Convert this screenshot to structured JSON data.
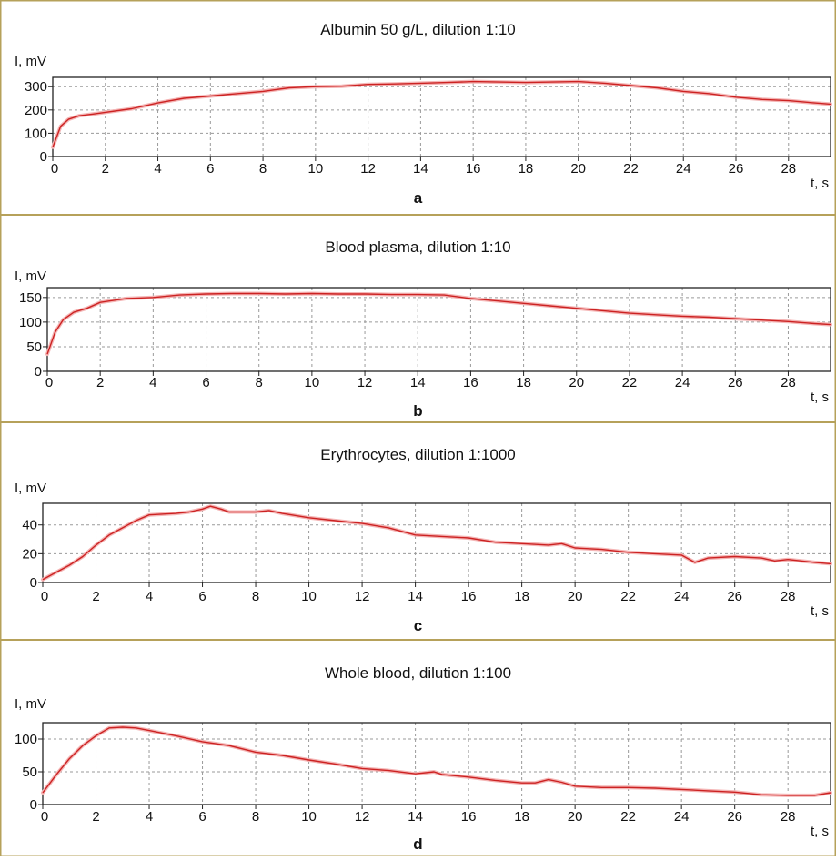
{
  "chart_data": [
    {
      "type": "line",
      "title": "Albumin 50 g/L, dilution 1:10",
      "ylabel": "I, mV",
      "xlabel": "t, s",
      "panel_label": "a",
      "xlim": [
        0,
        29.6
      ],
      "ylim": [
        0,
        340
      ],
      "xticks": [
        0,
        2,
        4,
        6,
        8,
        10,
        12,
        14,
        16,
        18,
        20,
        22,
        24,
        26,
        28
      ],
      "yticks": [
        0,
        100,
        200,
        300
      ],
      "grid": true,
      "series": [
        {
          "color": "#cc2222",
          "x": [
            0,
            0.3,
            0.6,
            1,
            1.5,
            2,
            3,
            4,
            5,
            6,
            7,
            8,
            9,
            10,
            11,
            12,
            13,
            14,
            15,
            16,
            17,
            18,
            19,
            20,
            21,
            22,
            23,
            24,
            25,
            26,
            27,
            28,
            29,
            29.6
          ],
          "y": [
            40,
            130,
            160,
            175,
            182,
            190,
            205,
            230,
            250,
            260,
            270,
            280,
            295,
            300,
            302,
            310,
            312,
            315,
            318,
            322,
            320,
            318,
            320,
            322,
            315,
            305,
            295,
            280,
            270,
            255,
            245,
            240,
            230,
            225
          ]
        }
      ]
    },
    {
      "type": "line",
      "title": "Blood plasma, dilution 1:10",
      "ylabel": "I, mV",
      "xlabel": "t, s",
      "panel_label": "b",
      "xlim": [
        0,
        29.6
      ],
      "ylim": [
        0,
        170
      ],
      "xticks": [
        0,
        2,
        4,
        6,
        8,
        10,
        12,
        14,
        16,
        18,
        20,
        22,
        24,
        26,
        28
      ],
      "yticks": [
        0,
        50,
        100,
        150
      ],
      "grid": true,
      "series": [
        {
          "color": "#cc2222",
          "x": [
            0,
            0.3,
            0.6,
            1,
            1.5,
            2,
            3,
            4,
            5,
            6,
            7,
            8,
            9,
            10,
            11,
            12,
            13,
            14,
            15,
            16,
            17,
            18,
            19,
            20,
            21,
            22,
            23,
            24,
            25,
            26,
            27,
            28,
            29,
            29.6
          ],
          "y": [
            35,
            80,
            105,
            120,
            128,
            140,
            148,
            150,
            155,
            157,
            158,
            158,
            157,
            158,
            157,
            157,
            156,
            156,
            155,
            148,
            143,
            138,
            133,
            128,
            123,
            118,
            115,
            112,
            110,
            107,
            104,
            101,
            97,
            95
          ]
        }
      ]
    },
    {
      "type": "line",
      "title": "Erythrocytes, dilution 1:1000",
      "ylabel": "I, mV",
      "xlabel": "t, s",
      "panel_label": "c",
      "xlim": [
        0,
        29.6
      ],
      "ylim": [
        0,
        55
      ],
      "xticks": [
        0,
        2,
        4,
        6,
        8,
        10,
        12,
        14,
        16,
        18,
        20,
        22,
        24,
        26,
        28
      ],
      "yticks": [
        0,
        20,
        40
      ],
      "grid": true,
      "series": [
        {
          "color": "#cc2222",
          "x": [
            0,
            0.5,
            1,
            1.5,
            2,
            2.5,
            3,
            3.5,
            4,
            5,
            5.5,
            6,
            6.3,
            6.7,
            7,
            8,
            8.5,
            9,
            10,
            11,
            12,
            13,
            14,
            15,
            16,
            17,
            18,
            19,
            19.5,
            20,
            21,
            22,
            23,
            24,
            24.5,
            25,
            26,
            27,
            27.5,
            28,
            29,
            29.6
          ],
          "y": [
            2,
            7,
            12,
            18,
            26,
            33,
            38,
            43,
            47,
            48,
            49,
            51,
            53,
            51,
            49,
            49,
            50,
            48,
            45,
            43,
            41,
            38,
            33,
            32,
            31,
            28,
            27,
            26,
            27,
            24,
            23,
            21,
            20,
            19,
            14,
            17,
            18,
            17,
            15,
            16,
            14,
            13
          ]
        }
      ]
    },
    {
      "type": "line",
      "title": "Whole blood, dilution 1:100",
      "ylabel": "I, mV",
      "xlabel": "t, s",
      "panel_label": "d",
      "xlim": [
        0,
        29.6
      ],
      "ylim": [
        0,
        125
      ],
      "xticks": [
        0,
        2,
        4,
        6,
        8,
        10,
        12,
        14,
        16,
        18,
        20,
        22,
        24,
        26,
        28
      ],
      "yticks": [
        0,
        50,
        100
      ],
      "grid": true,
      "series": [
        {
          "color": "#cc2222",
          "x": [
            0,
            0.5,
            1,
            1.5,
            2,
            2.5,
            3,
            3.5,
            4,
            5,
            6,
            7,
            8,
            9,
            10,
            11,
            12,
            13,
            14,
            14.7,
            15,
            16,
            17,
            18,
            18.5,
            19,
            19.5,
            20,
            21,
            22,
            23,
            24,
            25,
            26,
            27,
            28,
            29,
            29.6
          ],
          "y": [
            18,
            45,
            70,
            90,
            105,
            117,
            118,
            117,
            113,
            105,
            96,
            90,
            80,
            75,
            68,
            62,
            55,
            52,
            47,
            50,
            46,
            42,
            37,
            33,
            33,
            38,
            34,
            28,
            26,
            26,
            25,
            23,
            21,
            19,
            15,
            14,
            14,
            18
          ]
        }
      ]
    }
  ]
}
